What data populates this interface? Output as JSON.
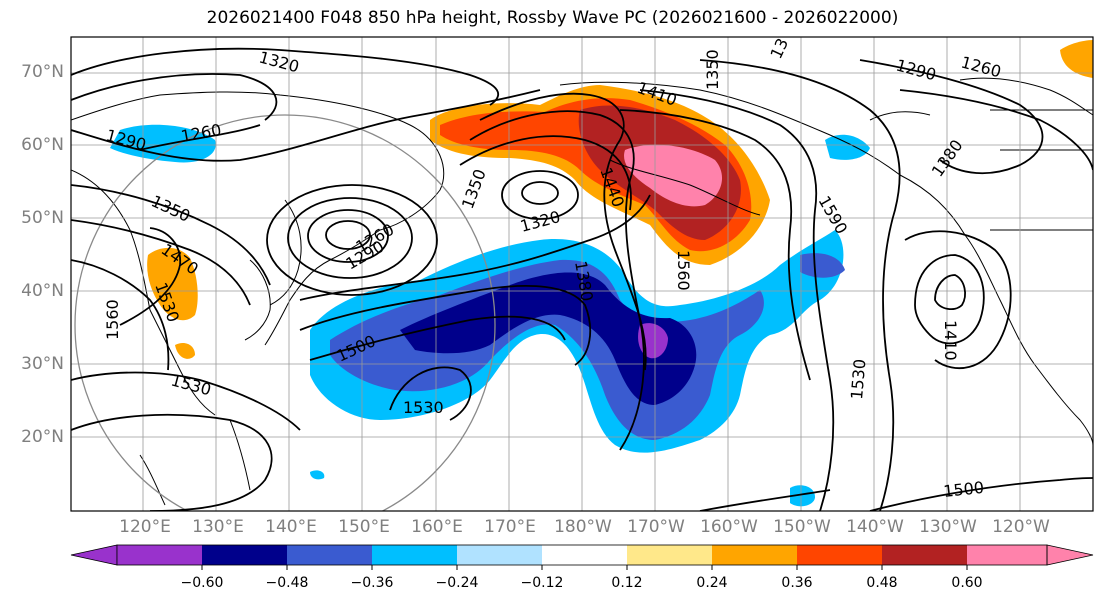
{
  "title": "2026021400 F048 850 hPa height, Rossby Wave PC (2026021600 - 2026022000)",
  "axes": {
    "lat_labels": [
      "70°N",
      "60°N",
      "50°N",
      "40°N",
      "30°N",
      "20°N"
    ],
    "lon_labels": [
      "120°E",
      "130°E",
      "140°E",
      "150°E",
      "160°E",
      "170°E",
      "180°W",
      "170°W",
      "160°W",
      "150°W",
      "140°W",
      "130°W",
      "120°W"
    ]
  },
  "colorbar": {
    "ticks": [
      "−0.60",
      "−0.48",
      "−0.36",
      "−0.24",
      "−0.12",
      "0.12",
      "0.24",
      "0.36",
      "0.48",
      "0.60"
    ],
    "colors": [
      "#9932cc",
      "#00008b",
      "#3a5bd0",
      "#00bfff",
      "#b0e2ff",
      "#ffffff",
      "#ffe88a",
      "#ffa500",
      "#ff4500",
      "#b22222",
      "#ff82ab"
    ]
  },
  "contour_labels": [
    "1320",
    "1350",
    "13",
    "1290",
    "1260",
    "1290",
    "1260",
    "1410",
    "1350",
    "1380",
    "1350",
    "1320",
    "1290",
    "1260",
    "1440",
    "1590",
    "1560",
    "1380",
    "1470",
    "1530",
    "1560",
    "1500",
    "1530",
    "1530",
    "1410",
    "1500"
  ]
}
